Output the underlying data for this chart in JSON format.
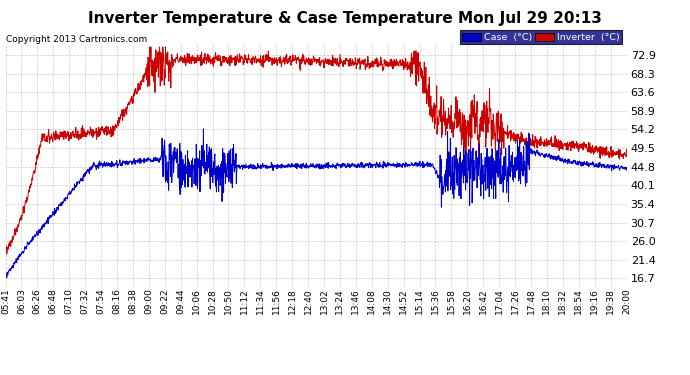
{
  "title": "Inverter Temperature & Case Temperature Mon Jul 29 20:13",
  "copyright": "Copyright 2013 Cartronics.com",
  "yticks": [
    16.7,
    21.4,
    26.0,
    30.7,
    35.4,
    40.1,
    44.8,
    49.5,
    54.2,
    58.9,
    63.6,
    68.3,
    72.9
  ],
  "ymin": 14.5,
  "ymax": 75.5,
  "legend_case_label": "Case  (°C)",
  "legend_inverter_label": "Inverter  (°C)",
  "case_color": "#0000cc",
  "inverter_color": "#cc0000",
  "background_color": "#ffffff",
  "grid_color": "#bbbbbb",
  "title_fontsize": 11,
  "tick_fontsize": 8,
  "xtick_fontsize": 6.5
}
